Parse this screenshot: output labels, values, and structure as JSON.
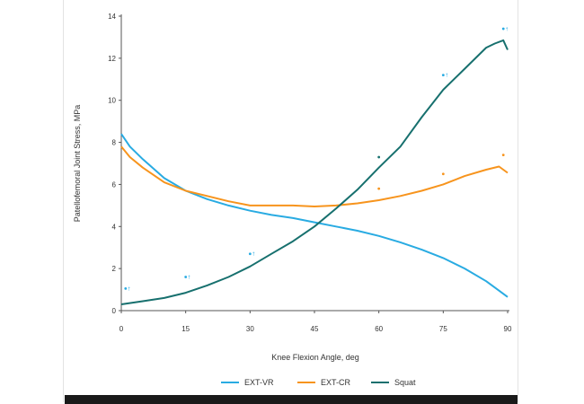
{
  "colors": {
    "ext_vr": "#29abe2",
    "ext_cr": "#f7941d",
    "squat": "#17706e",
    "axis": "#555555",
    "text": "#333333",
    "bar": "#1a1a1a"
  },
  "chart_data": {
    "type": "line",
    "xlabel": "Knee Flexion Angle, deg",
    "ylabel": "Patellofemoral Joint Stress, MPa",
    "xlim": [
      0,
      90
    ],
    "ylim": [
      0,
      14
    ],
    "xticks": [
      0,
      15,
      30,
      45,
      60,
      75,
      90
    ],
    "yticks": [
      0,
      2,
      4,
      6,
      8,
      10,
      12,
      14
    ],
    "grid": false,
    "legend_position": "bottom",
    "series": [
      {
        "name": "EXT-VR",
        "color": "#29abe2",
        "x": [
          0,
          2,
          5,
          10,
          15,
          20,
          25,
          30,
          35,
          40,
          45,
          50,
          55,
          60,
          65,
          70,
          75,
          80,
          85,
          88,
          90
        ],
        "y": [
          8.4,
          7.8,
          7.2,
          6.3,
          5.7,
          5.3,
          5.0,
          4.75,
          4.55,
          4.4,
          4.2,
          4.0,
          3.8,
          3.55,
          3.25,
          2.9,
          2.5,
          2.0,
          1.4,
          0.95,
          0.65
        ]
      },
      {
        "name": "EXT-CR",
        "color": "#f7941d",
        "x": [
          0,
          2,
          5,
          10,
          15,
          20,
          25,
          30,
          35,
          40,
          45,
          50,
          55,
          60,
          65,
          70,
          75,
          80,
          85,
          88,
          90
        ],
        "y": [
          7.8,
          7.3,
          6.8,
          6.1,
          5.7,
          5.45,
          5.2,
          5.0,
          5.0,
          5.0,
          4.95,
          5.0,
          5.1,
          5.25,
          5.45,
          5.7,
          6.0,
          6.4,
          6.7,
          6.85,
          6.55
        ]
      },
      {
        "name": "Squat",
        "color": "#17706e",
        "x": [
          0,
          5,
          10,
          15,
          20,
          25,
          30,
          35,
          40,
          45,
          50,
          55,
          60,
          65,
          70,
          75,
          80,
          85,
          87,
          89,
          90
        ],
        "y": [
          0.3,
          0.45,
          0.6,
          0.85,
          1.2,
          1.6,
          2.1,
          2.7,
          3.3,
          4.0,
          4.85,
          5.75,
          6.8,
          7.8,
          9.2,
          10.5,
          11.5,
          12.5,
          12.7,
          12.85,
          12.4
        ]
      }
    ],
    "markers": [
      {
        "x": 1,
        "y": 1.05,
        "label": "†",
        "series": "EXT-VR"
      },
      {
        "x": 15,
        "y": 1.6,
        "label": "†",
        "series": "EXT-VR"
      },
      {
        "x": 30,
        "y": 2.7,
        "label": "†",
        "series": "EXT-VR"
      },
      {
        "x": 60,
        "y": 7.3,
        "label": "",
        "series": "Squat"
      },
      {
        "x": 75,
        "y": 11.2,
        "label": "†",
        "series": "EXT-VR"
      },
      {
        "x": 89,
        "y": 13.4,
        "label": "†",
        "series": "EXT-VR"
      },
      {
        "x": 60,
        "y": 5.8,
        "label": "",
        "series": "EXT-CR"
      },
      {
        "x": 75,
        "y": 6.5,
        "label": "",
        "series": "EXT-CR"
      },
      {
        "x": 89,
        "y": 7.4,
        "label": "",
        "series": "EXT-CR"
      }
    ]
  }
}
